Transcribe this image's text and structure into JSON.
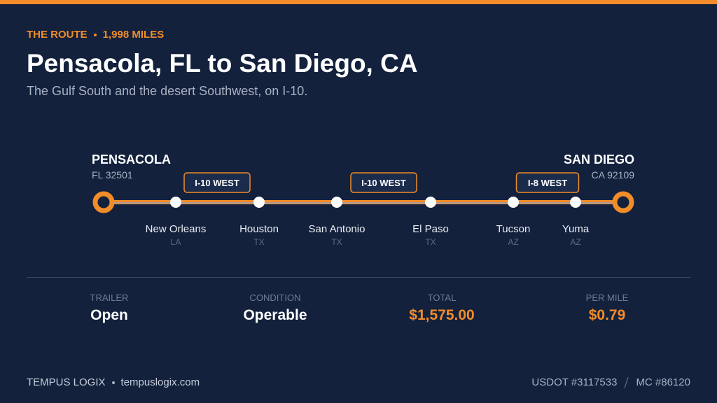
{
  "header": {
    "eyebrow": [
      "THE ROUTE",
      "1,998 MILES"
    ],
    "title": "Pensacola, FL to San Diego, CA",
    "subtitle": "The Gulf South and the desert Southwest, on I-10."
  },
  "route": {
    "origin": {
      "city": "PENSACOLA",
      "detail": "FL 32501"
    },
    "destination": {
      "city": "SAN DIEGO",
      "detail": "CA 92109"
    },
    "stops": [
      {
        "city": "New Orleans",
        "state": "LA"
      },
      {
        "city": "Houston",
        "state": "TX"
      },
      {
        "city": "San Antonio",
        "state": "TX"
      },
      {
        "city": "El Paso",
        "state": "TX"
      },
      {
        "city": "Tucson",
        "state": "AZ"
      },
      {
        "city": "Yuma",
        "state": "AZ"
      }
    ],
    "highways": [
      "I-10 WEST",
      "I-10 WEST",
      "I-8 WEST"
    ]
  },
  "stats": [
    {
      "label": "TRAILER",
      "value": "Open"
    },
    {
      "label": "CONDITION",
      "value": "Operable"
    },
    {
      "label": "TOTAL",
      "value": "$1,575.00"
    },
    {
      "label": "PER MILE",
      "value": "$0.79"
    }
  ],
  "footer": {
    "left": [
      "TEMPUS LOGIX",
      "tempuslogix.com"
    ],
    "right": [
      "USDOT #3117533",
      "MC #86120"
    ]
  }
}
